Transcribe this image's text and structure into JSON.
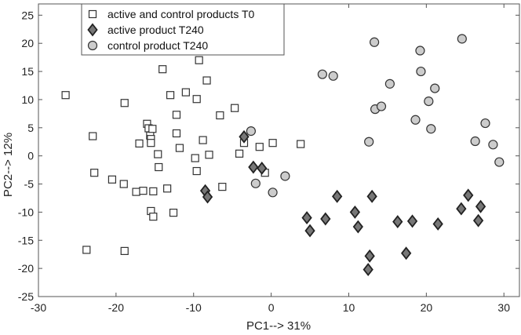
{
  "chart_data": {
    "type": "scatter",
    "xlabel": "PC1--> 31%",
    "ylabel": "PC2--> 12%",
    "xlim": [
      -30,
      32
    ],
    "ylim": [
      -25,
      27
    ],
    "xticks": [
      -30,
      -20,
      -10,
      0,
      10,
      20,
      30
    ],
    "yticks": [
      -25,
      -20,
      -15,
      -10,
      -5,
      0,
      5,
      10,
      15,
      20,
      25
    ],
    "grid": false,
    "legend_position": "top-left",
    "series": [
      {
        "name": "active and control products T0",
        "marker": "square",
        "fill": "#ffffff",
        "stroke": "#333333",
        "points": [
          [
            -26.5,
            10.8
          ],
          [
            -23,
            3.5
          ],
          [
            -22.8,
            -3.0
          ],
          [
            -23.8,
            -16.7
          ],
          [
            -18.9,
            9.4
          ],
          [
            -18.9,
            -16.9
          ],
          [
            -20.5,
            -4.2
          ],
          [
            -19,
            -5.0
          ],
          [
            -17.4,
            -6.4
          ],
          [
            -16.5,
            -6.2
          ],
          [
            -17,
            2.2
          ],
          [
            -16,
            5.7
          ],
          [
            -15.8,
            4.9
          ],
          [
            -15.6,
            3.6
          ],
          [
            -15.3,
            4.8
          ],
          [
            -15.5,
            3.0
          ],
          [
            -15.5,
            2.3
          ],
          [
            -14.6,
            0.3
          ],
          [
            -14.5,
            -2.0
          ],
          [
            -15.5,
            -9.8
          ],
          [
            -15.2,
            -10.8
          ],
          [
            -15.2,
            -6.3
          ],
          [
            -14,
            15.4
          ],
          [
            -13,
            10.8
          ],
          [
            -13.4,
            -5.8
          ],
          [
            -12.6,
            -10.1
          ],
          [
            -12.2,
            7.3
          ],
          [
            -12.2,
            4.0
          ],
          [
            -11.8,
            1.4
          ],
          [
            -11,
            11.3
          ],
          [
            -9.6,
            10.1
          ],
          [
            -9.8,
            -0.4
          ],
          [
            -9.6,
            -2.7
          ],
          [
            -9.3,
            17.0
          ],
          [
            -8.8,
            2.8
          ],
          [
            -8.3,
            13.4
          ],
          [
            -8,
            0.2
          ],
          [
            -6.6,
            7.2
          ],
          [
            -6.3,
            -5.5
          ],
          [
            -4.7,
            8.5
          ],
          [
            -4.1,
            0.4
          ],
          [
            -3.5,
            2.3
          ],
          [
            -1.5,
            1.6
          ],
          [
            0.2,
            2.3
          ],
          [
            3.8,
            2.1
          ],
          [
            -0.8,
            -3.0
          ]
        ]
      },
      {
        "name": "active product T240",
        "marker": "diamond",
        "fill": "#777777",
        "stroke": "#222222",
        "points": [
          [
            -3.5,
            3.4
          ],
          [
            -8.5,
            -6.2
          ],
          [
            -8.2,
            -7.3
          ],
          [
            -2.3,
            -2.0
          ],
          [
            -1.2,
            -2.2
          ],
          [
            4.6,
            -11.0
          ],
          [
            5,
            -13.3
          ],
          [
            7,
            -11.2
          ],
          [
            8.5,
            -7.2
          ],
          [
            10.8,
            -10.0
          ],
          [
            11.2,
            -12.6
          ],
          [
            13.0,
            -7.2
          ],
          [
            12.7,
            -17.8
          ],
          [
            12.5,
            -20.2
          ],
          [
            16.3,
            -11.7
          ],
          [
            17.4,
            -17.3
          ],
          [
            18.2,
            -11.6
          ],
          [
            21.5,
            -12.1
          ],
          [
            24.5,
            -9.4
          ],
          [
            25.4,
            -7.0
          ],
          [
            26.7,
            -11.5
          ],
          [
            27,
            -9.0
          ]
        ]
      },
      {
        "name": "control product T240",
        "marker": "circle",
        "fill": "#cccccc",
        "stroke": "#333333",
        "points": [
          [
            -2.6,
            4.4
          ],
          [
            -2.0,
            -4.9
          ],
          [
            1.8,
            -3.6
          ],
          [
            0.2,
            -6.5
          ],
          [
            6.6,
            14.5
          ],
          [
            8.0,
            14.2
          ],
          [
            13.3,
            20.2
          ],
          [
            12.6,
            2.5
          ],
          [
            13.4,
            8.3
          ],
          [
            14.2,
            8.8
          ],
          [
            15.3,
            12.8
          ],
          [
            18.6,
            6.4
          ],
          [
            19.2,
            18.7
          ],
          [
            19.3,
            15.0
          ],
          [
            20.3,
            9.7
          ],
          [
            20.6,
            4.8
          ],
          [
            21.1,
            12.0
          ],
          [
            24.6,
            20.8
          ],
          [
            26.3,
            2.6
          ],
          [
            27.6,
            5.8
          ],
          [
            28.6,
            2.0
          ],
          [
            29.4,
            -1.1
          ]
        ]
      }
    ]
  }
}
